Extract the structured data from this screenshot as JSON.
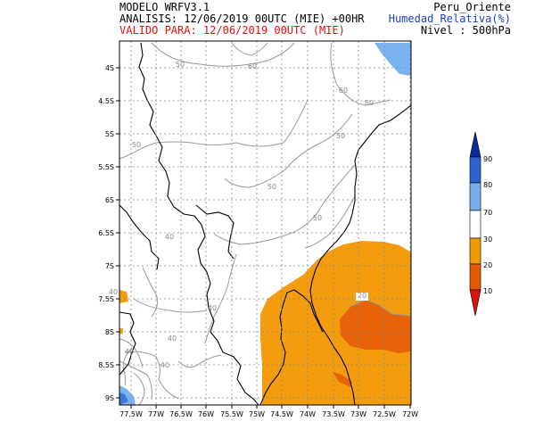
{
  "header": {
    "model": "MODELO WRFV3.1",
    "analysis": "ANALISIS: 12/06/2019 00UTC (MIE) +00HR",
    "valid": "VALIDO PARA: 12/06/2019 00UTC (MIE)",
    "region": "Peru_Oriente",
    "variable": "Humedad_Relativa(%)",
    "level": "Nivel : 500hPa"
  },
  "axes": {
    "y_ticks": [
      "4S",
      "4.5S",
      "5S",
      "5.5S",
      "6S",
      "6.5S",
      "7S",
      "7.5S",
      "8S",
      "8.5S",
      "9S"
    ],
    "x_ticks": [
      "77.5W",
      "77W",
      "76.5W",
      "76W",
      "75.5W",
      "75W",
      "74.5W",
      "74W",
      "73.5W",
      "73W",
      "72.5W",
      "72W"
    ]
  },
  "contour_labels": [
    "50",
    "60",
    "60",
    "80",
    "50",
    "50",
    "50",
    "40",
    "50",
    "40",
    "40",
    "40",
    "40",
    "40",
    "20"
  ],
  "colorbar": {
    "labels": [
      "90",
      "80",
      "70",
      "30",
      "20",
      "10"
    ],
    "colors": [
      "#0b2a9e",
      "#2e62d0",
      "#7aacf0",
      "#ffffff",
      "#f09a00",
      "#e45a00",
      "#e01010"
    ]
  },
  "colors": {
    "orange": "#f39c0d",
    "dark_orange": "#e8620a",
    "light_blue": "#7ab3f2",
    "contour": "#9a9a9a",
    "header_valid": "#e01010",
    "header_variable": "#1a3ec8"
  }
}
